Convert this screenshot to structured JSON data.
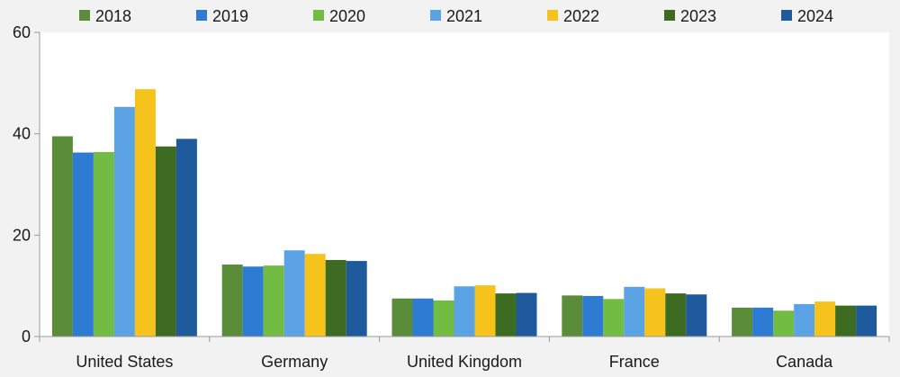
{
  "chart_data": {
    "type": "bar",
    "title": "",
    "xlabel": "",
    "ylabel": "",
    "ylim": [
      0,
      60
    ],
    "yticks": [
      0,
      20,
      40,
      60
    ],
    "grid": false,
    "legend_position": "top",
    "categories": [
      "United States",
      "Germany",
      "United Kingdom",
      "France",
      "Canada"
    ],
    "series": [
      {
        "name": "2018",
        "color": "#5b8c3a",
        "values": [
          39.5,
          14.2,
          7.5,
          8.1,
          5.7
        ]
      },
      {
        "name": "2019",
        "color": "#2e7bd4",
        "values": [
          36.3,
          13.8,
          7.5,
          8.0,
          5.7
        ]
      },
      {
        "name": "2020",
        "color": "#72bc44",
        "values": [
          36.4,
          14.0,
          7.1,
          7.4,
          5.1
        ]
      },
      {
        "name": "2021",
        "color": "#5ca3e6",
        "values": [
          45.3,
          17.0,
          9.9,
          9.8,
          6.4
        ]
      },
      {
        "name": "2022",
        "color": "#f6c21c",
        "values": [
          48.8,
          16.3,
          10.1,
          9.5,
          6.9
        ]
      },
      {
        "name": "2023",
        "color": "#3e6b22",
        "values": [
          37.5,
          15.1,
          8.5,
          8.5,
          6.1
        ]
      },
      {
        "name": "2024",
        "color": "#1f5a9c",
        "values": [
          39.0,
          14.9,
          8.6,
          8.3,
          6.1
        ]
      }
    ]
  }
}
